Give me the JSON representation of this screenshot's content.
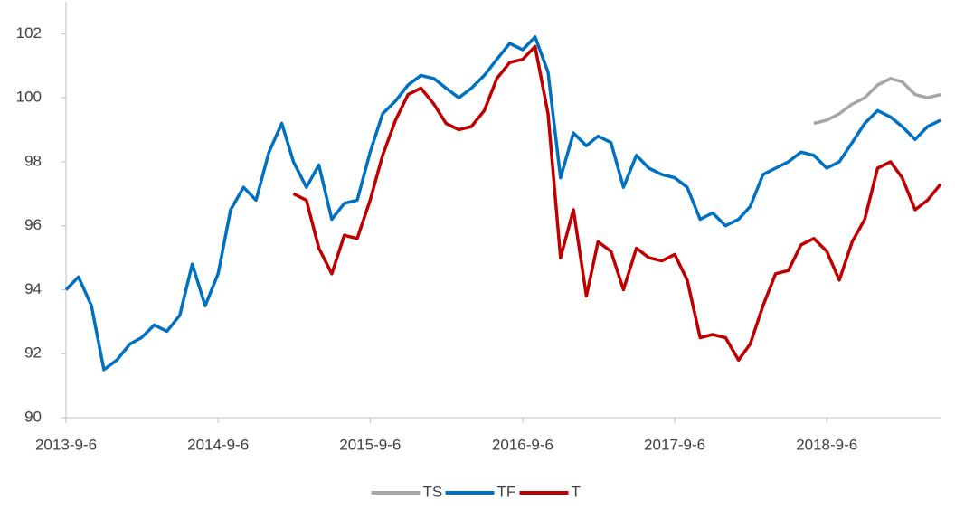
{
  "chart_data": {
    "type": "line",
    "x": [
      "2013-9-6",
      "2013-10-6",
      "2013-11-6",
      "2013-12-6",
      "2014-1-6",
      "2014-2-6",
      "2014-3-6",
      "2014-4-6",
      "2014-5-6",
      "2014-6-6",
      "2014-7-6",
      "2014-8-6",
      "2014-9-6",
      "2014-10-6",
      "2014-11-6",
      "2014-12-6",
      "2015-1-6",
      "2015-2-6",
      "2015-3-6",
      "2015-4-6",
      "2015-5-6",
      "2015-6-6",
      "2015-7-6",
      "2015-8-6",
      "2015-9-6",
      "2015-10-6",
      "2015-11-6",
      "2015-12-6",
      "2016-1-6",
      "2016-2-6",
      "2016-3-6",
      "2016-4-6",
      "2016-5-6",
      "2016-6-6",
      "2016-7-6",
      "2016-8-6",
      "2016-9-6",
      "2016-10-6",
      "2016-11-6",
      "2016-12-6",
      "2017-1-6",
      "2017-2-6",
      "2017-3-6",
      "2017-4-6",
      "2017-5-6",
      "2017-6-6",
      "2017-7-6",
      "2017-8-6",
      "2017-9-6",
      "2017-10-6",
      "2017-11-6",
      "2017-12-6",
      "2018-1-6",
      "2018-2-6",
      "2018-3-6",
      "2018-4-6",
      "2018-5-6",
      "2018-6-6",
      "2018-7-6",
      "2018-8-6",
      "2018-9-6",
      "2018-10-6",
      "2018-11-6",
      "2018-12-6",
      "2019-1-6",
      "2019-2-6",
      "2019-3-6",
      "2019-4-6",
      "2019-5-6",
      "2019-6-6"
    ],
    "series": [
      {
        "name": "TS",
        "color": "#a6a6a6",
        "values": [
          null,
          null,
          null,
          null,
          null,
          null,
          null,
          null,
          null,
          null,
          null,
          null,
          null,
          null,
          null,
          null,
          null,
          null,
          null,
          null,
          null,
          null,
          null,
          null,
          null,
          null,
          null,
          null,
          null,
          null,
          null,
          null,
          null,
          null,
          null,
          null,
          null,
          null,
          null,
          null,
          null,
          null,
          null,
          null,
          null,
          null,
          null,
          null,
          null,
          null,
          null,
          null,
          null,
          null,
          null,
          null,
          null,
          null,
          null,
          99.2,
          99.3,
          99.5,
          99.8,
          100.0,
          100.4,
          100.6,
          100.5,
          100.1,
          100.0,
          100.1
        ]
      },
      {
        "name": "TF",
        "color": "#0070c0",
        "values": [
          94.0,
          94.4,
          93.5,
          91.5,
          91.8,
          92.3,
          92.5,
          92.9,
          92.7,
          93.2,
          94.8,
          93.5,
          94.5,
          96.5,
          97.2,
          96.8,
          98.3,
          99.2,
          98.0,
          97.2,
          97.9,
          96.2,
          96.7,
          96.8,
          98.3,
          99.5,
          99.9,
          100.4,
          100.7,
          100.6,
          100.3,
          100.0,
          100.3,
          100.7,
          101.2,
          101.7,
          101.5,
          101.9,
          100.8,
          97.5,
          98.9,
          98.5,
          98.8,
          98.6,
          97.2,
          98.2,
          97.8,
          97.6,
          97.5,
          97.2,
          96.2,
          96.4,
          96.0,
          96.2,
          96.6,
          97.6,
          97.8,
          98.0,
          98.3,
          98.2,
          97.8,
          98.0,
          98.6,
          99.2,
          99.6,
          99.4,
          99.1,
          98.7,
          99.1,
          99.3
        ]
      },
      {
        "name": "T",
        "color": "#c00000",
        "values": [
          null,
          null,
          null,
          null,
          null,
          null,
          null,
          null,
          null,
          null,
          null,
          null,
          null,
          null,
          null,
          null,
          null,
          null,
          97.0,
          96.8,
          95.3,
          94.5,
          95.7,
          95.6,
          96.8,
          98.2,
          99.3,
          100.1,
          100.3,
          99.8,
          99.2,
          99.0,
          99.1,
          99.6,
          100.6,
          101.1,
          101.2,
          101.6,
          99.5,
          95.0,
          96.5,
          93.8,
          95.5,
          95.2,
          94.0,
          95.3,
          95.0,
          94.9,
          95.1,
          94.3,
          92.5,
          92.6,
          92.5,
          91.8,
          92.3,
          93.5,
          94.5,
          94.6,
          95.4,
          95.6,
          95.2,
          94.3,
          95.5,
          96.2,
          97.8,
          98.0,
          97.5,
          96.5,
          96.8,
          97.3
        ]
      }
    ],
    "xlim": [
      "2013-9-6",
      "2019-6-6"
    ],
    "xticks": [
      "2013-9-6",
      "2014-9-6",
      "2015-9-6",
      "2016-9-6",
      "2017-9-6",
      "2018-9-6"
    ],
    "ylim": [
      90,
      103
    ],
    "yticks": [
      90,
      92,
      94,
      96,
      98,
      100,
      102
    ],
    "legend": "bottom"
  }
}
